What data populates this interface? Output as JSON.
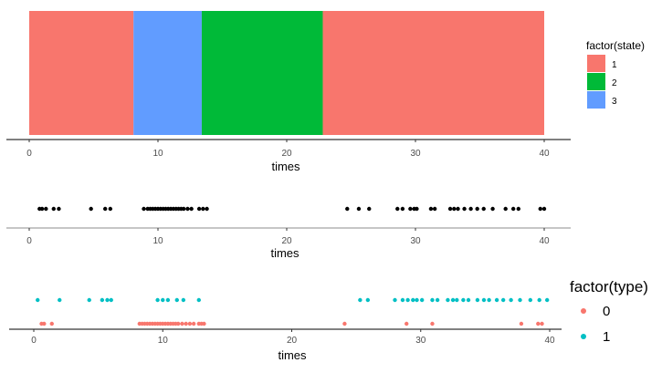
{
  "chart_data": [
    {
      "type": "bar",
      "subtype": "state-timeline",
      "xlabel": "times",
      "xlim": [
        0,
        40
      ],
      "xticks": [
        0,
        10,
        20,
        30,
        40
      ],
      "segments": [
        {
          "start": 0,
          "end": 8.1,
          "state": "1"
        },
        {
          "start": 8.1,
          "end": 13.4,
          "state": "3"
        },
        {
          "start": 13.4,
          "end": 22.8,
          "state": "2"
        },
        {
          "start": 22.8,
          "end": 40,
          "state": "1"
        }
      ],
      "legend": {
        "title": "factor(state)",
        "entries": [
          {
            "label": "1",
            "color": "#F8766D"
          },
          {
            "label": "2",
            "color": "#00BA38"
          },
          {
            "label": "3",
            "color": "#619CFF"
          }
        ]
      },
      "grid": false
    },
    {
      "type": "scatter",
      "xlabel": "times",
      "xlim": [
        0,
        40
      ],
      "xticks": [
        0,
        10,
        20,
        30,
        40
      ],
      "color": "#000000",
      "x": [
        0.8,
        1.0,
        1.3,
        1.9,
        2.3,
        4.8,
        5.9,
        6.3,
        8.9,
        9.2,
        9.4,
        9.6,
        9.8,
        10.0,
        10.2,
        10.4,
        10.6,
        10.8,
        11.0,
        11.2,
        11.4,
        11.6,
        11.8,
        12.0,
        12.3,
        12.6,
        13.2,
        13.5,
        13.8,
        24.7,
        25.6,
        26.4,
        28.6,
        29.0,
        29.6,
        29.9,
        30.1,
        31.2,
        31.5,
        32.7,
        33.0,
        33.3,
        33.8,
        34.3,
        34.8,
        35.3,
        36.0,
        37.0,
        37.6,
        38.0,
        39.7,
        40.0
      ],
      "grid": false
    },
    {
      "type": "scatter",
      "xlabel": "times",
      "xlim": [
        0,
        40
      ],
      "xticks": [
        0,
        10,
        20,
        30,
        40
      ],
      "series": [
        {
          "name": "0",
          "color": "#F8766D",
          "x": [
            0.6,
            0.8,
            1.4,
            8.2,
            8.4,
            8.6,
            8.8,
            9.0,
            9.2,
            9.4,
            9.6,
            9.8,
            10.0,
            10.2,
            10.4,
            10.6,
            10.8,
            11.0,
            11.2,
            11.5,
            11.8,
            12.1,
            12.4,
            12.8,
            13.0,
            13.2,
            24.1,
            28.9,
            30.9,
            37.8,
            39.1,
            39.4
          ],
          "y": [
            0,
            0,
            0,
            0,
            0,
            0,
            0,
            0,
            0,
            0,
            0,
            0,
            0,
            0,
            0,
            0,
            0,
            0,
            0,
            0,
            0,
            0,
            0,
            0,
            0,
            0,
            0,
            0,
            0,
            0,
            0,
            0
          ]
        },
        {
          "name": "1",
          "color": "#00BFC4",
          "x": [
            0.3,
            2.0,
            4.3,
            5.3,
            5.7,
            6.0,
            9.6,
            10.0,
            10.4,
            11.1,
            11.6,
            12.8,
            25.3,
            25.9,
            28.0,
            28.6,
            29.0,
            29.4,
            29.7,
            30.1,
            30.9,
            31.3,
            32.1,
            32.5,
            32.8,
            33.3,
            33.7,
            34.4,
            34.9,
            35.3,
            35.9,
            36.4,
            37.0,
            37.7,
            38.5,
            39.2,
            39.8
          ],
          "y": [
            1,
            1,
            1,
            1,
            1,
            1,
            1,
            1,
            1,
            1,
            1,
            1,
            1,
            1,
            1,
            1,
            1,
            1,
            1,
            1,
            1,
            1,
            1,
            1,
            1,
            1,
            1,
            1,
            1,
            1,
            1,
            1,
            1,
            1,
            1,
            1,
            1
          ]
        }
      ],
      "legend": {
        "title": "factor(type)",
        "entries": [
          {
            "label": "0",
            "color": "#F8766D"
          },
          {
            "label": "1",
            "color": "#00BFC4"
          }
        ]
      },
      "grid": false
    }
  ]
}
